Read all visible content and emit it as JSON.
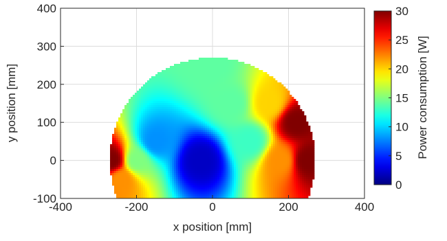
{
  "chart_data": {
    "type": "heatmap",
    "title": "",
    "xlabel": "x position [mm]",
    "ylabel": "y position [mm]",
    "xlim": [
      -400,
      400
    ],
    "ylim": [
      -100,
      400
    ],
    "xticks": [
      -400,
      -200,
      0,
      200,
      400
    ],
    "yticks": [
      -100,
      0,
      100,
      200,
      300,
      400
    ],
    "grid": true,
    "colormap": "jet",
    "colorbar": {
      "label": "Power consumption [W]",
      "range": [
        0,
        30
      ],
      "ticks": [
        0,
        5,
        10,
        15,
        20,
        25,
        30
      ],
      "placement": "right"
    },
    "region": {
      "shape": "disk clipped to plot area",
      "center": [
        0,
        0
      ],
      "radius": 270
    },
    "field": {
      "minimum_location": [
        -30,
        0
      ],
      "minimum_value": 2,
      "samples": [
        {
          "x": -30,
          "y": 0,
          "value": 2
        },
        {
          "x": -150,
          "y": 50,
          "value": 8
        },
        {
          "x": -200,
          "y": 0,
          "value": 15
        },
        {
          "x": -240,
          "y": -50,
          "value": 22
        },
        {
          "x": -265,
          "y": 0,
          "value": 30
        },
        {
          "x": 0,
          "y": 250,
          "value": 14
        },
        {
          "x": 50,
          "y": 150,
          "value": 14
        },
        {
          "x": 100,
          "y": 50,
          "value": 13
        },
        {
          "x": 150,
          "y": 150,
          "value": 20
        },
        {
          "x": 180,
          "y": 0,
          "value": 22
        },
        {
          "x": 220,
          "y": 100,
          "value": 30
        },
        {
          "x": 250,
          "y": 0,
          "value": 30
        }
      ]
    }
  }
}
